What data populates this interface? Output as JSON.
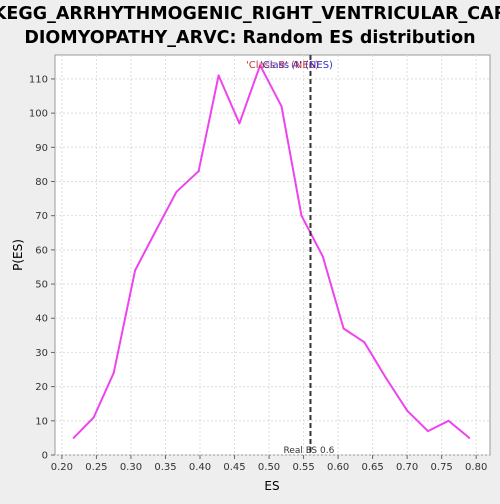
{
  "chart_data": {
    "type": "line",
    "title": "KEGG_ARRHYTHMOGENIC_RIGHT_VENTRICULAR_CAR\nDIOMYOPATHY_ARVC: Random ES distribution",
    "title_lines": [
      "KEGG_ARRHYTHMOGENIC_RIGHT_VENTRICULAR_CAR",
      "DIOMYOPATHY_ARVC: Random ES distribution"
    ],
    "xlabel": "ES",
    "ylabel": "P(ES)",
    "xlim": [
      0.19,
      0.82
    ],
    "ylim": [
      0,
      117
    ],
    "xticks": [
      0.2,
      0.25,
      0.3,
      0.35,
      0.4,
      0.45,
      0.5,
      0.55,
      0.6,
      0.65,
      0.7,
      0.75,
      0.8
    ],
    "xtick_labels": [
      "0.20",
      "0.25",
      "0.30",
      "0.35",
      "0.40",
      "0.45",
      "0.50",
      "0.55",
      "0.60",
      "0.65",
      "0.70",
      "0.75",
      "0.80"
    ],
    "yticks": [
      0,
      10,
      20,
      30,
      40,
      50,
      60,
      70,
      80,
      90,
      100,
      110
    ],
    "ytick_labels": [
      "0",
      "10",
      "20",
      "30",
      "40",
      "50",
      "60",
      "70",
      "80",
      "90",
      "100",
      "110"
    ],
    "grid": true,
    "series": [
      {
        "color": "#ee44ee",
        "x": [
          0.217,
          0.246,
          0.275,
          0.306,
          0.337,
          0.366,
          0.398,
          0.427,
          0.457,
          0.487,
          0.518,
          0.547,
          0.578,
          0.608,
          0.638,
          0.668,
          0.7,
          0.73,
          0.76,
          0.79
        ],
        "y": [
          5,
          11,
          24,
          54,
          66,
          77,
          83,
          111,
          97,
          114,
          102,
          70,
          58,
          37,
          33,
          23,
          13,
          7,
          10,
          5
        ]
      }
    ],
    "real_es": 0.56,
    "real_es_label": "Real ES 0.6",
    "annotations": [
      {
        "text": "'Class B' (NES)",
        "color": "#cc3333"
      },
      {
        "text": "'Class A' (NES)",
        "color": "#3333cc"
      }
    ]
  }
}
